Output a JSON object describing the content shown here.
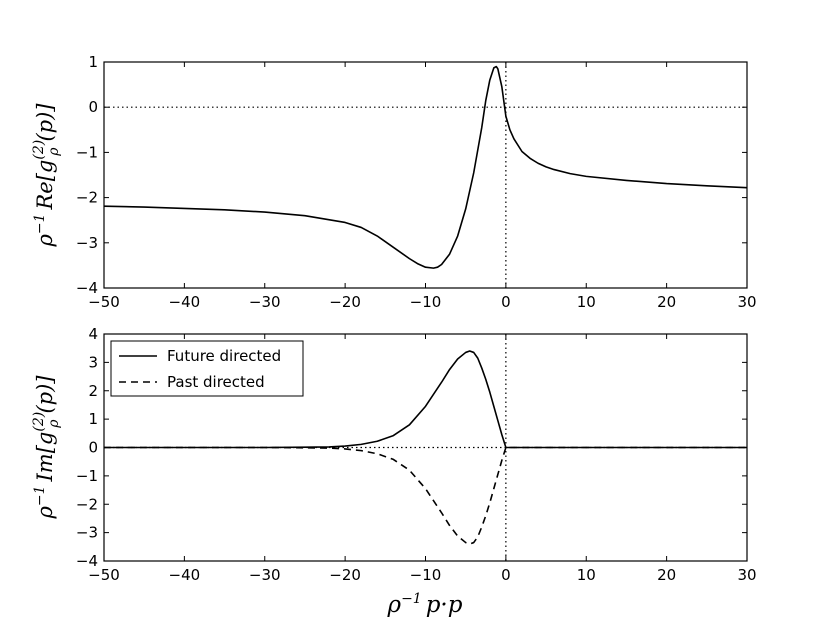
{
  "chart_data": [
    {
      "type": "line",
      "xlim": [
        -50,
        30
      ],
      "ylim": [
        -4,
        1
      ],
      "x_ticks": [
        "−50",
        "−40",
        "−30",
        "−20",
        "−10",
        "0",
        "10",
        "20",
        "30"
      ],
      "y_ticks": [
        "−4",
        "−3",
        "−2",
        "−1",
        "0",
        "1"
      ],
      "ylabel": {
        "prefix": "ρ",
        "prefix_sup": "−1",
        "op": "Re",
        "open": "[",
        "g": "g",
        "g_sup": "(2)",
        "g_sub": "ρ",
        "arg": "(p)",
        "close": "]"
      },
      "reference_lines": {
        "y": 0,
        "x": 0,
        "style": "dotted"
      },
      "series": [
        {
          "style": "solid",
          "x": [
            -50,
            -45,
            -40,
            -35,
            -30,
            -25,
            -20,
            -18,
            -16,
            -14,
            -12,
            -11,
            -10,
            -9,
            -8.5,
            -8,
            -7,
            -6,
            -5,
            -4,
            -3,
            -2.5,
            -2,
            -1.5,
            -1.2,
            -1,
            -0.5,
            0,
            0.5,
            1,
            2,
            3,
            4,
            5,
            6,
            8,
            10,
            15,
            20,
            25,
            30
          ],
          "y": [
            -2.19,
            -2.21,
            -2.24,
            -2.27,
            -2.32,
            -2.4,
            -2.55,
            -2.66,
            -2.85,
            -3.1,
            -3.35,
            -3.46,
            -3.54,
            -3.56,
            -3.54,
            -3.48,
            -3.25,
            -2.85,
            -2.25,
            -1.45,
            -0.45,
            0.15,
            0.6,
            0.87,
            0.9,
            0.85,
            0.45,
            -0.2,
            -0.5,
            -0.7,
            -0.98,
            -1.13,
            -1.24,
            -1.32,
            -1.38,
            -1.47,
            -1.53,
            -1.62,
            -1.69,
            -1.74,
            -1.78
          ]
        }
      ]
    },
    {
      "type": "line",
      "xlim": [
        -50,
        30
      ],
      "ylim": [
        -4,
        4
      ],
      "x_ticks": [
        "−50",
        "−40",
        "−30",
        "−20",
        "−10",
        "0",
        "10",
        "20",
        "30"
      ],
      "y_ticks": [
        "−4",
        "−3",
        "−2",
        "−1",
        "0",
        "1",
        "2",
        "3",
        "4"
      ],
      "xlabel": {
        "prefix": "ρ",
        "prefix_sup": "−1",
        "body": "p·p"
      },
      "ylabel": {
        "prefix": "ρ",
        "prefix_sup": "−1",
        "op": "Im",
        "open": "[",
        "g": "g",
        "g_sup": "(2)",
        "g_sub": "ρ",
        "arg": "(p)",
        "close": "]"
      },
      "reference_lines": {
        "y": 0,
        "x": 0,
        "style": "dotted"
      },
      "legend": {
        "placement": "upper-left"
      },
      "series": [
        {
          "name": "Future directed",
          "style": "solid",
          "x": [
            -50,
            -30,
            -25,
            -22,
            -20,
            -18,
            -16,
            -14,
            -12,
            -10,
            -8,
            -7,
            -6,
            -5,
            -4.5,
            -4,
            -3.5,
            -3,
            -2.5,
            -2,
            -1.5,
            -1,
            -0.5,
            0,
            5,
            10,
            20,
            30
          ],
          "y": [
            0,
            0,
            0.01,
            0.02,
            0.05,
            0.11,
            0.22,
            0.42,
            0.8,
            1.45,
            2.3,
            2.75,
            3.12,
            3.35,
            3.4,
            3.35,
            3.15,
            2.8,
            2.4,
            1.95,
            1.45,
            0.95,
            0.45,
            0,
            0,
            0,
            0,
            0
          ]
        },
        {
          "name": "Past directed",
          "style": "dashed",
          "x": [
            -50,
            -30,
            -25,
            -22,
            -20,
            -18,
            -16,
            -14,
            -12,
            -10,
            -8,
            -7,
            -6,
            -5,
            -4.5,
            -4,
            -3.5,
            -3,
            -2.5,
            -2,
            -1.5,
            -1,
            -0.5,
            0,
            5,
            10,
            20,
            30
          ],
          "y": [
            0,
            0,
            -0.01,
            -0.02,
            -0.05,
            -0.11,
            -0.22,
            -0.42,
            -0.8,
            -1.45,
            -2.3,
            -2.75,
            -3.12,
            -3.35,
            -3.4,
            -3.35,
            -3.15,
            -2.8,
            -2.4,
            -1.95,
            -1.45,
            -0.95,
            -0.45,
            0,
            0,
            0,
            0,
            0
          ]
        }
      ]
    }
  ]
}
